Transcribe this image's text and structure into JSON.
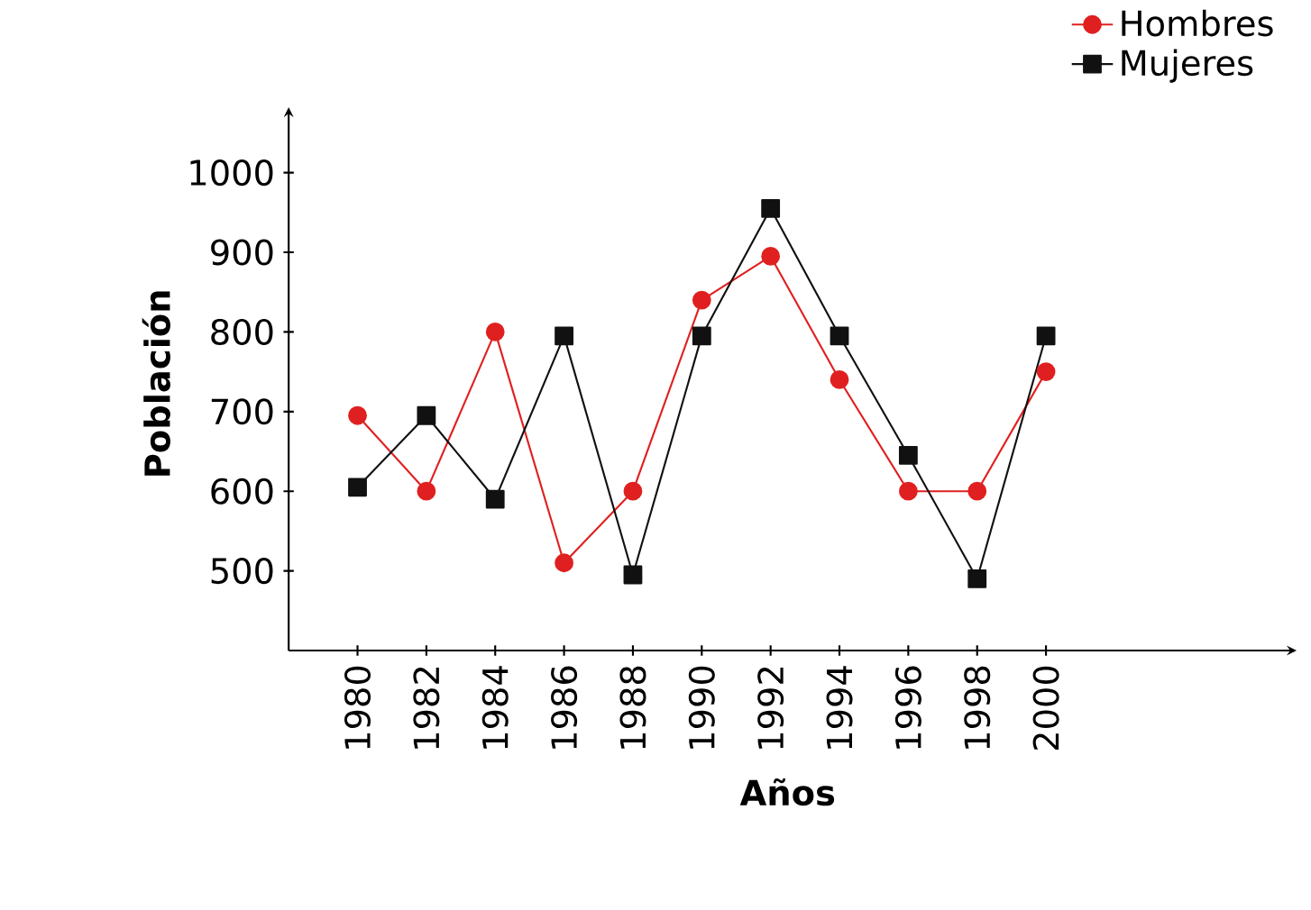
{
  "chart_data": {
    "type": "line",
    "xlabel": "Años",
    "ylabel": "Población",
    "x": [
      1980,
      1982,
      1984,
      1986,
      1988,
      1990,
      1992,
      1994,
      1996,
      1998,
      2000
    ],
    "series": [
      {
        "name": "Hombres",
        "color": "#e02020",
        "marker": "circle",
        "values": [
          695,
          600,
          800,
          510,
          600,
          840,
          895,
          740,
          600,
          600,
          750
        ]
      },
      {
        "name": "Mujeres",
        "color": "#111111",
        "marker": "square",
        "values": [
          605,
          695,
          590,
          795,
          495,
          795,
          955,
          795,
          645,
          490,
          795
        ]
      }
    ],
    "xlim": [
      1978,
      2007
    ],
    "ylim": [
      400,
      1070
    ],
    "xticks": [
      1980,
      1982,
      1984,
      1986,
      1988,
      1990,
      1992,
      1994,
      1996,
      1998,
      2000
    ],
    "yticks": [
      500,
      600,
      700,
      800,
      900,
      1000
    ],
    "grid": false,
    "legend": "top right",
    "line_style": "solid"
  }
}
